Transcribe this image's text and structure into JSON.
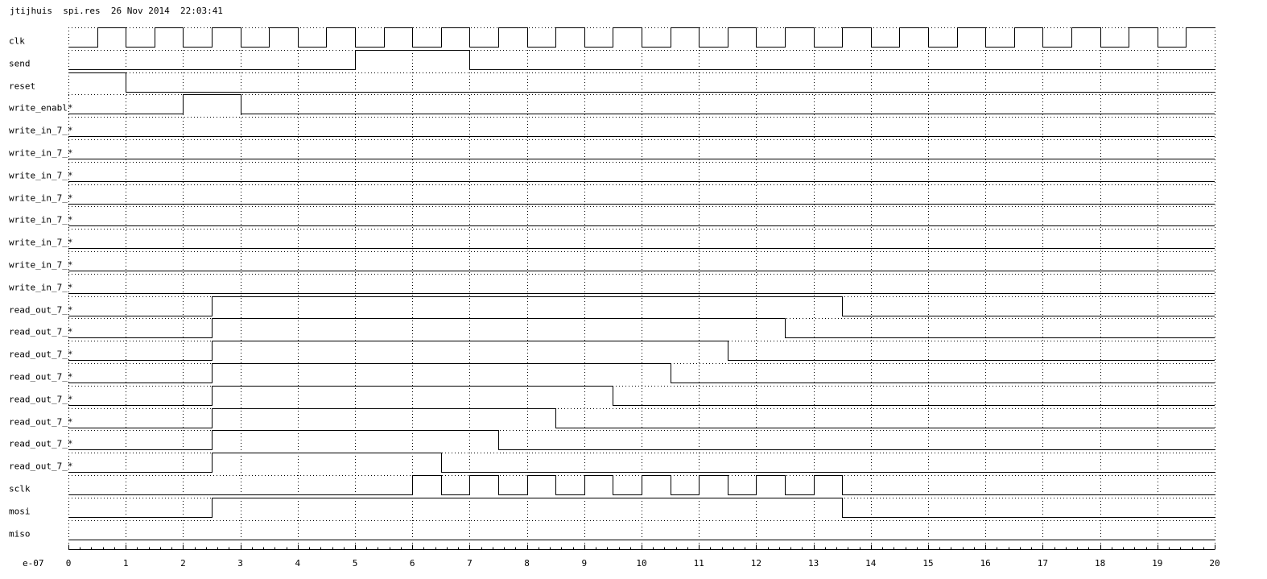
{
  "header": {
    "user": "jtijhuis",
    "file": "spi.res",
    "date": "26 Nov 2014",
    "time": "22:03:41"
  },
  "chart_data": {
    "type": "timing-diagram",
    "x_unit_label": "e-07",
    "xlim": [
      0,
      20
    ],
    "x_ticks": [
      0,
      1,
      2,
      3,
      4,
      5,
      6,
      7,
      8,
      9,
      10,
      11,
      12,
      13,
      14,
      15,
      16,
      17,
      18,
      19,
      20
    ],
    "grid": true,
    "signals": [
      {
        "name": "clk",
        "initial": 0,
        "transitions": [
          0.5,
          1,
          1.5,
          2,
          2.5,
          3,
          3.5,
          4,
          4.5,
          5,
          5.5,
          6,
          6.5,
          7,
          7.5,
          8,
          8.5,
          9,
          9.5,
          10,
          10.5,
          11,
          11.5,
          12,
          12.5,
          13,
          13.5,
          14,
          14.5,
          15,
          15.5,
          16,
          16.5,
          17,
          17.5,
          18,
          18.5,
          19,
          19.5
        ]
      },
      {
        "name": "send",
        "initial": 0,
        "transitions": [
          5,
          7
        ]
      },
      {
        "name": "reset",
        "initial": 1,
        "transitions": [
          1
        ]
      },
      {
        "name": "write_enabl*",
        "initial": 0,
        "transitions": [
          2,
          3
        ]
      },
      {
        "name": "write_in_7_*",
        "initial": 0,
        "transitions": []
      },
      {
        "name": "write_in_7_*",
        "initial": 0,
        "transitions": []
      },
      {
        "name": "write_in_7_*",
        "initial": 0,
        "transitions": []
      },
      {
        "name": "write_in_7_*",
        "initial": 0,
        "transitions": []
      },
      {
        "name": "write_in_7_*",
        "initial": 0,
        "transitions": []
      },
      {
        "name": "write_in_7_*",
        "initial": 0,
        "transitions": []
      },
      {
        "name": "write_in_7_*",
        "initial": 0,
        "transitions": []
      },
      {
        "name": "write_in_7_*",
        "initial": 0,
        "transitions": []
      },
      {
        "name": "read_out_7_*",
        "initial": 0,
        "transitions": [
          2.5,
          13.5
        ]
      },
      {
        "name": "read_out_7_*",
        "initial": 0,
        "transitions": [
          2.5,
          12.5
        ]
      },
      {
        "name": "read_out_7_*",
        "initial": 0,
        "transitions": [
          2.5,
          11.5
        ]
      },
      {
        "name": "read_out_7_*",
        "initial": 0,
        "transitions": [
          2.5,
          10.5
        ]
      },
      {
        "name": "read_out_7_*",
        "initial": 0,
        "transitions": [
          2.5,
          9.5
        ]
      },
      {
        "name": "read_out_7_*",
        "initial": 0,
        "transitions": [
          2.5,
          8.5
        ]
      },
      {
        "name": "read_out_7_*",
        "initial": 0,
        "transitions": [
          2.5,
          7.5
        ]
      },
      {
        "name": "read_out_7_*",
        "initial": 0,
        "transitions": [
          2.5,
          6.5
        ]
      },
      {
        "name": "sclk",
        "initial": 0,
        "transitions": [
          6,
          6.5,
          7,
          7.5,
          8,
          8.5,
          9,
          9.5,
          10,
          10.5,
          11,
          11.5,
          12,
          12.5,
          13,
          13.5
        ]
      },
      {
        "name": "mosi",
        "initial": 0,
        "transitions": [
          2.5,
          13.5
        ]
      },
      {
        "name": "miso",
        "initial": 0,
        "transitions": []
      }
    ]
  }
}
